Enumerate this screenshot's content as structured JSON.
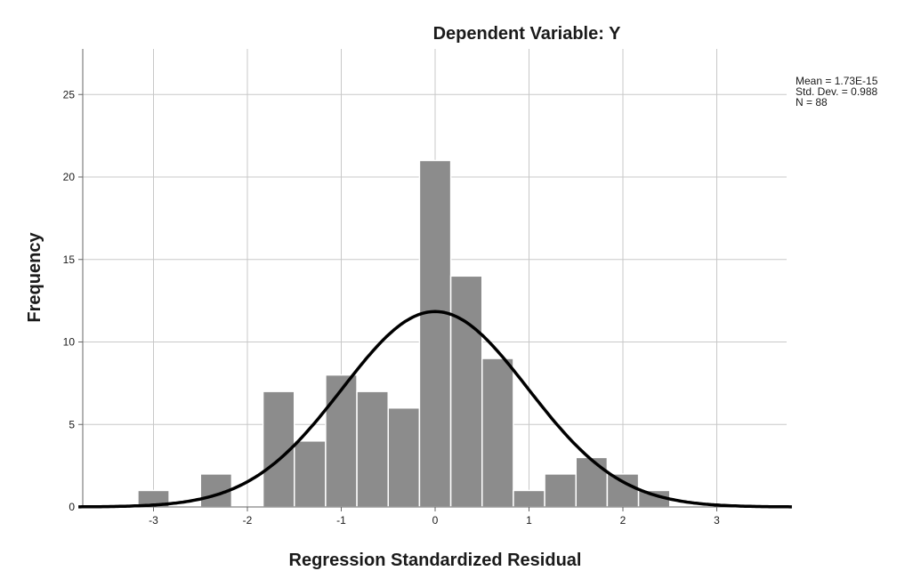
{
  "chart_data": {
    "type": "bar",
    "title": "Dependent Variable: Y",
    "xlabel": "Regression Standardized Residual",
    "ylabel": "Frequency",
    "xlim": [
      -3.8,
      3.8
    ],
    "ylim": [
      0,
      27
    ],
    "x_ticks": [
      "-3",
      "-2",
      "-1",
      "0",
      "1",
      "2",
      "3"
    ],
    "x_tick_values": [
      -3,
      -2,
      -1,
      0,
      1,
      2,
      3
    ],
    "y_ticks": [
      "0",
      "5",
      "10",
      "15",
      "20",
      "25"
    ],
    "y_tick_values": [
      0,
      5,
      10,
      15,
      20,
      25
    ],
    "grid": true,
    "bin_width": 0.3333,
    "bins": [
      {
        "start": -3.1667,
        "end": -2.8333,
        "count": 1
      },
      {
        "start": -2.8333,
        "end": -2.5,
        "count": 0
      },
      {
        "start": -2.5,
        "end": -2.1667,
        "count": 2
      },
      {
        "start": -2.1667,
        "end": -1.8333,
        "count": 0
      },
      {
        "start": -1.8333,
        "end": -1.5,
        "count": 7
      },
      {
        "start": -1.5,
        "end": -1.1667,
        "count": 4
      },
      {
        "start": -1.1667,
        "end": -0.8333,
        "count": 8
      },
      {
        "start": -0.8333,
        "end": -0.5,
        "count": 7
      },
      {
        "start": -0.5,
        "end": -0.1667,
        "count": 6
      },
      {
        "start": -0.1667,
        "end": 0.1667,
        "count": 21
      },
      {
        "start": 0.1667,
        "end": 0.5,
        "count": 14
      },
      {
        "start": 0.5,
        "end": 0.8333,
        "count": 9
      },
      {
        "start": 0.8333,
        "end": 1.1667,
        "count": 1
      },
      {
        "start": 1.1667,
        "end": 1.5,
        "count": 2
      },
      {
        "start": 1.5,
        "end": 1.8333,
        "count": 3
      },
      {
        "start": 1.8333,
        "end": 2.1667,
        "count": 2
      },
      {
        "start": 2.1667,
        "end": 2.5,
        "count": 1
      }
    ],
    "normal_curve": {
      "mean": 0,
      "sd": 0.988,
      "n": 88
    },
    "stats": [
      "Mean = 1.73E-15",
      "Std. Dev. = 0.988",
      "N = 88"
    ],
    "colors": {
      "bar": "#8c8c8c",
      "bar_edge": "#ffffff",
      "curve": "#000000",
      "grid": "#c8c8c8",
      "axis": "#666666"
    }
  }
}
